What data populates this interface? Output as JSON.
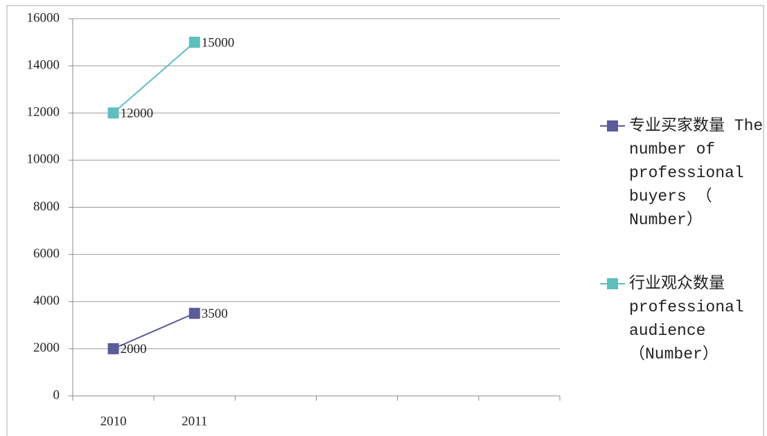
{
  "chart_data": {
    "type": "line",
    "categories": [
      "2010",
      "2011",
      null,
      null,
      null,
      null
    ],
    "series": [
      {
        "name": "专业买家数量 The number of professional buyers （ Number）",
        "color": "#5b5b9a",
        "values": [
          2000,
          3500,
          null,
          null,
          null,
          null
        ]
      },
      {
        "name": "行业观众数量 professional audience （Number）",
        "color": "#5fbfbf",
        "values": [
          12000,
          15000,
          null,
          null,
          null,
          null
        ]
      }
    ],
    "ylim": [
      0,
      16000
    ],
    "yticks": [
      0,
      2000,
      4000,
      6000,
      8000,
      10000,
      12000,
      14000,
      16000
    ],
    "grid": true,
    "legend": "right"
  }
}
